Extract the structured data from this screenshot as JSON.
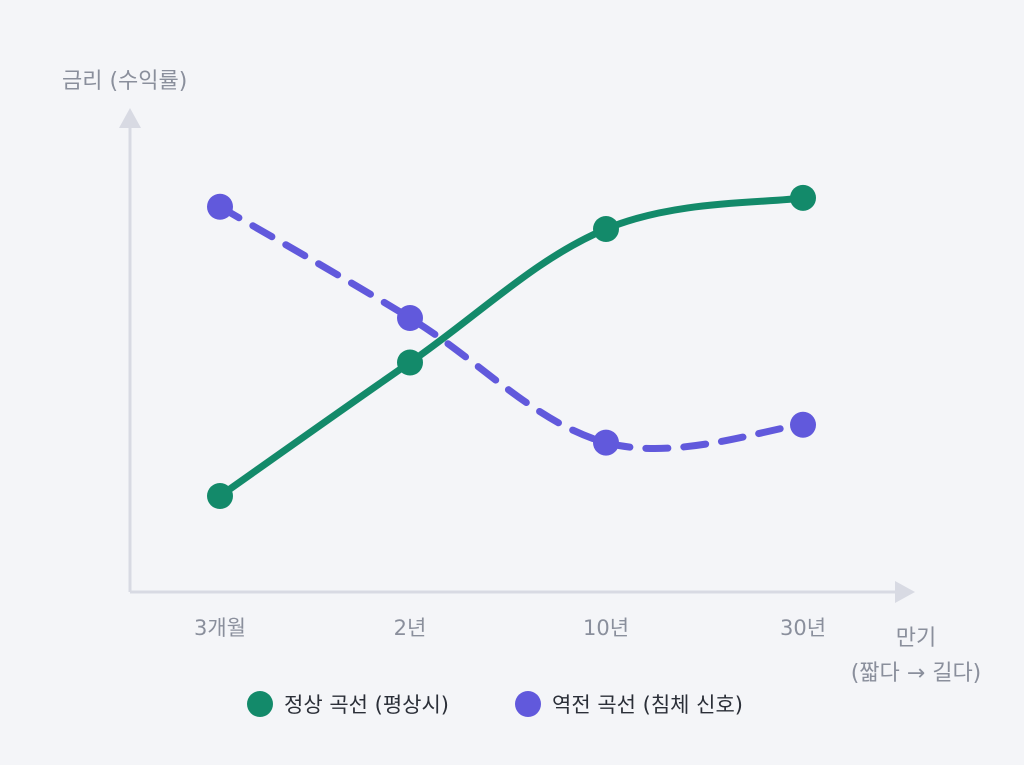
{
  "chart_data": {
    "type": "line",
    "ylabel": "금리 (수익률)",
    "xlabel_line1": "만기",
    "xlabel_line2": "(짧다 → 길다)",
    "categories": [
      "3개월",
      "2년",
      "10년",
      "30년"
    ],
    "ylim": [
      0,
      100
    ],
    "grid": false,
    "legend_position": "bottom",
    "series": [
      {
        "name": "정상 곡선 (평상시)",
        "values": [
          20,
          50,
          80,
          87
        ],
        "color": "#138a6a",
        "dashed": false
      },
      {
        "name": "역전 곡선 (침체 신호)",
        "values": [
          85,
          60,
          32,
          36
        ],
        "color": "#6159dc",
        "dashed": true
      }
    ]
  },
  "colors": {
    "axis": "#d8dae3",
    "text_muted": "#8a8f9c",
    "background": "#f4f5f8"
  }
}
